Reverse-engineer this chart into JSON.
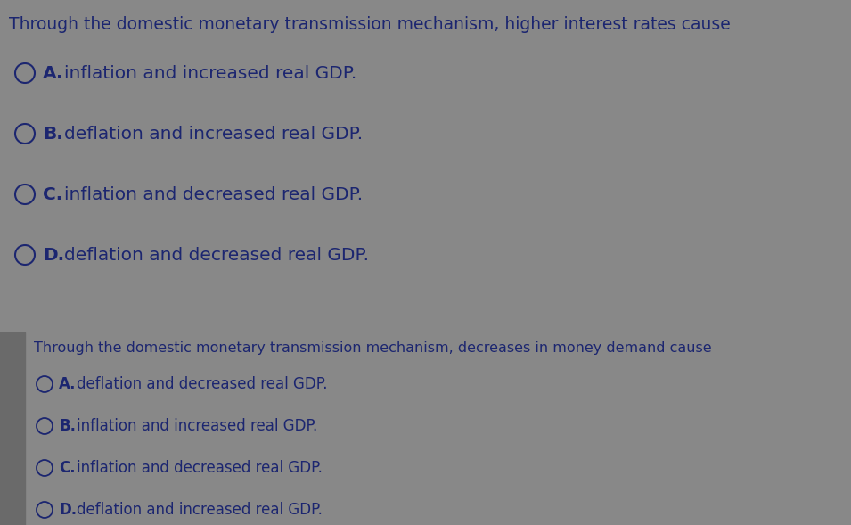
{
  "q1_question": "Through the domestic monetary transmission mechanism, higher interest rates cause",
  "q1_options": [
    {
      "letter": "A.",
      "text": "inflation and increased real GDP."
    },
    {
      "letter": "B.",
      "text": "deflation and increased real GDP."
    },
    {
      "letter": "C.",
      "text": "inflation and decreased real GDP."
    },
    {
      "letter": "D.",
      "text": "deflation and decreased real GDP."
    }
  ],
  "q2_question": "Through the domestic monetary transmission mechanism, decreases in money demand cause",
  "q2_options": [
    {
      "letter": "A.",
      "text": "deflation and decreased real GDP."
    },
    {
      "letter": "B.",
      "text": "inflation and increased real GDP."
    },
    {
      "letter": "C.",
      "text": "inflation and decreased real GDP."
    },
    {
      "letter": "D.",
      "text": "deflation and increased real GDP."
    }
  ],
  "bg_color_q1": "#d8d8d8",
  "bg_color_gap": "#888888",
  "bg_color_q2": "#d0d0d0",
  "left_bar_color": "#6a6a6a",
  "text_color": "#1c2670",
  "q1_question_fontsize": 13.5,
  "q1_option_fontsize": 14.5,
  "q2_question_fontsize": 11.5,
  "q2_option_fontsize": 12.0,
  "fig_width": 9.55,
  "fig_height": 5.89,
  "dpi": 100
}
